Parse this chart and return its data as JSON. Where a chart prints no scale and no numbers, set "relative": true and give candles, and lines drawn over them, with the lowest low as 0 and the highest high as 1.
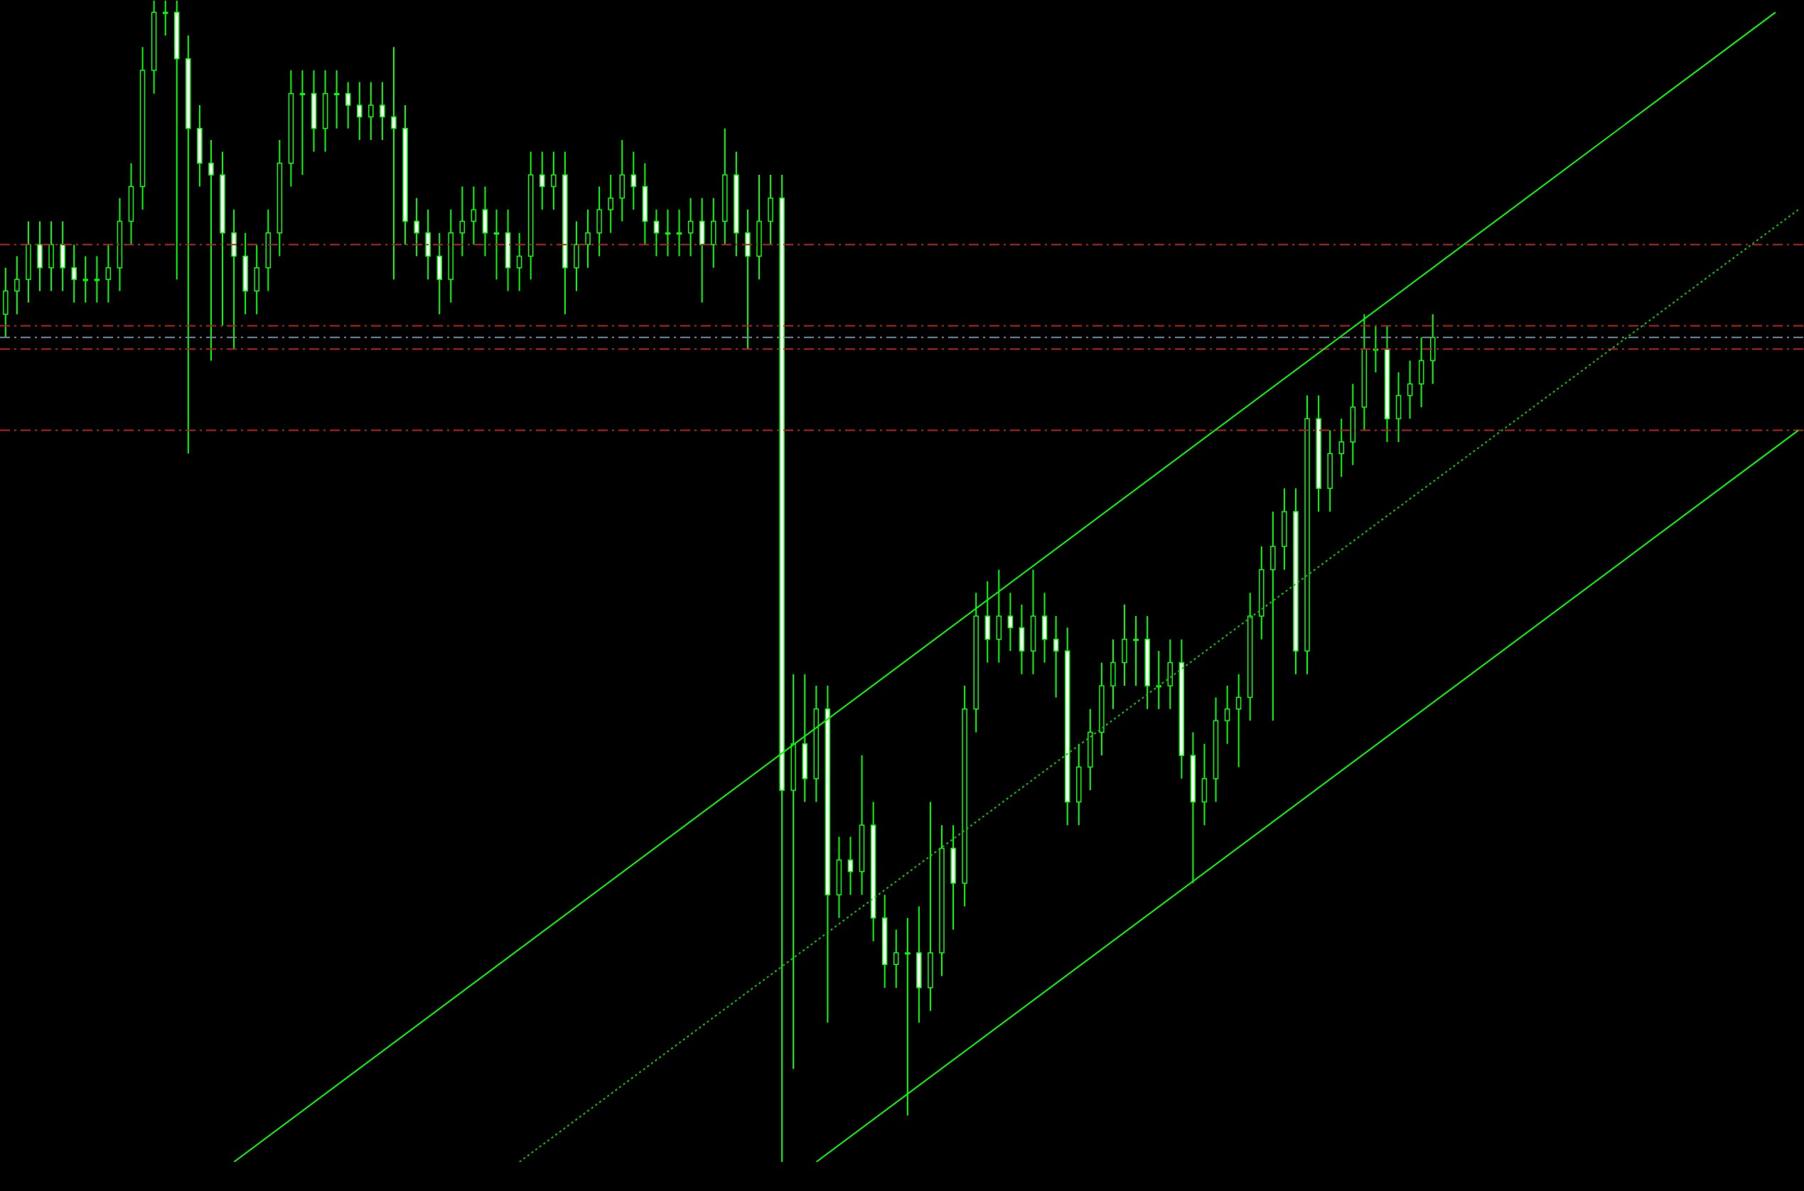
{
  "chart_data": {
    "type": "candlestick",
    "relative": true,
    "tick_labels": false,
    "color": "#00ff00",
    "categories": [
      null,
      null,
      null,
      null,
      null,
      null,
      null,
      null,
      null,
      null,
      null,
      null,
      null,
      null,
      null,
      null,
      null,
      null,
      null,
      null,
      null,
      null,
      null,
      null,
      null,
      null,
      null,
      null,
      null,
      null,
      null,
      null,
      null,
      null,
      null,
      null,
      null,
      null,
      null,
      null,
      null,
      null,
      null,
      null,
      null,
      null,
      null,
      null,
      null,
      null,
      null,
      null,
      null,
      null,
      null,
      null,
      null,
      null,
      null,
      null,
      null,
      null,
      null,
      null,
      null,
      null,
      null,
      null,
      null,
      null,
      null,
      null,
      null,
      null,
      null,
      null,
      null,
      null,
      null,
      null,
      null,
      null,
      null,
      null,
      null,
      null,
      null,
      null,
      null,
      null,
      null,
      null,
      null,
      null,
      null,
      null,
      null,
      null,
      null,
      null,
      null,
      null,
      null,
      null,
      null,
      null,
      null,
      null,
      null,
      null,
      null,
      null,
      null,
      null,
      null,
      null,
      null,
      null,
      null,
      null,
      null,
      null,
      null,
      null,
      null,
      null,
      null,
      null,
      null,
      null,
      null,
      null,
      null,
      null,
      null,
      null,
      null,
      null,
      null,
      null,
      null,
      null,
      null,
      null,
      null,
      null,
      null,
      null,
      null,
      null,
      null,
      null,
      null,
      null,
      null,
      null,
      null,
      null
    ],
    "ohlc": [
      [
        0.73,
        0.77,
        0.71,
        0.75
      ],
      [
        0.75,
        0.78,
        0.73,
        0.76
      ],
      [
        0.76,
        0.81,
        0.74,
        0.79
      ],
      [
        0.79,
        0.81,
        0.75,
        0.77
      ],
      [
        0.77,
        0.81,
        0.75,
        0.79
      ],
      [
        0.79,
        0.81,
        0.75,
        0.77
      ],
      [
        0.77,
        0.79,
        0.74,
        0.76
      ],
      [
        0.76,
        0.78,
        0.74,
        0.76
      ],
      [
        0.76,
        0.78,
        0.74,
        0.76
      ],
      [
        0.76,
        0.79,
        0.74,
        0.77
      ],
      [
        0.77,
        0.83,
        0.75,
        0.81
      ],
      [
        0.81,
        0.86,
        0.79,
        0.84
      ],
      [
        0.84,
        0.96,
        0.82,
        0.94
      ],
      [
        0.94,
        1.0,
        0.92,
        0.99
      ],
      [
        0.99,
        1.0,
        0.97,
        0.99
      ],
      [
        0.99,
        1.0,
        0.76,
        0.95
      ],
      [
        0.95,
        0.97,
        0.61,
        0.89
      ],
      [
        0.89,
        0.91,
        0.84,
        0.86
      ],
      [
        0.86,
        0.88,
        0.69,
        0.85
      ],
      [
        0.85,
        0.87,
        0.72,
        0.8
      ],
      [
        0.8,
        0.82,
        0.7,
        0.78
      ],
      [
        0.78,
        0.8,
        0.73,
        0.75
      ],
      [
        0.75,
        0.79,
        0.73,
        0.77
      ],
      [
        0.77,
        0.82,
        0.75,
        0.8
      ],
      [
        0.8,
        0.88,
        0.78,
        0.86
      ],
      [
        0.86,
        0.94,
        0.84,
        0.92
      ],
      [
        0.92,
        0.94,
        0.85,
        0.92
      ],
      [
        0.92,
        0.94,
        0.87,
        0.89
      ],
      [
        0.89,
        0.94,
        0.87,
        0.92
      ],
      [
        0.92,
        0.94,
        0.89,
        0.92
      ],
      [
        0.92,
        0.93,
        0.89,
        0.91
      ],
      [
        0.91,
        0.93,
        0.88,
        0.9
      ],
      [
        0.9,
        0.93,
        0.88,
        0.91
      ],
      [
        0.91,
        0.93,
        0.88,
        0.9
      ],
      [
        0.9,
        0.96,
        0.76,
        0.89
      ],
      [
        0.89,
        0.91,
        0.79,
        0.81
      ],
      [
        0.81,
        0.83,
        0.78,
        0.8
      ],
      [
        0.8,
        0.82,
        0.76,
        0.78
      ],
      [
        0.78,
        0.8,
        0.73,
        0.76
      ],
      [
        0.76,
        0.82,
        0.74,
        0.8
      ],
      [
        0.8,
        0.84,
        0.78,
        0.81
      ],
      [
        0.81,
        0.84,
        0.79,
        0.82
      ],
      [
        0.82,
        0.84,
        0.78,
        0.8
      ],
      [
        0.8,
        0.82,
        0.76,
        0.8
      ],
      [
        0.8,
        0.82,
        0.75,
        0.77
      ],
      [
        0.77,
        0.8,
        0.75,
        0.78
      ],
      [
        0.78,
        0.87,
        0.76,
        0.85
      ],
      [
        0.85,
        0.87,
        0.82,
        0.84
      ],
      [
        0.84,
        0.87,
        0.82,
        0.85
      ],
      [
        0.85,
        0.87,
        0.73,
        0.77
      ],
      [
        0.77,
        0.81,
        0.75,
        0.79
      ],
      [
        0.79,
        0.82,
        0.77,
        0.8
      ],
      [
        0.8,
        0.84,
        0.78,
        0.82
      ],
      [
        0.82,
        0.85,
        0.8,
        0.83
      ],
      [
        0.83,
        0.88,
        0.81,
        0.85
      ],
      [
        0.85,
        0.87,
        0.82,
        0.84
      ],
      [
        0.84,
        0.86,
        0.79,
        0.81
      ],
      [
        0.81,
        0.82,
        0.78,
        0.8
      ],
      [
        0.8,
        0.82,
        0.78,
        0.8
      ],
      [
        0.8,
        0.82,
        0.78,
        0.8
      ],
      [
        0.8,
        0.83,
        0.78,
        0.81
      ],
      [
        0.81,
        0.83,
        0.74,
        0.79
      ],
      [
        0.79,
        0.83,
        0.77,
        0.81
      ],
      [
        0.81,
        0.89,
        0.79,
        0.85
      ],
      [
        0.85,
        0.87,
        0.78,
        0.8
      ],
      [
        0.8,
        0.82,
        0.7,
        0.78
      ],
      [
        0.78,
        0.85,
        0.76,
        0.81
      ],
      [
        0.81,
        0.85,
        0.79,
        0.83
      ],
      [
        0.83,
        0.85,
        0.0,
        0.32
      ],
      [
        0.32,
        0.42,
        0.08,
        0.36
      ],
      [
        0.36,
        0.42,
        0.31,
        0.33
      ],
      [
        0.33,
        0.41,
        0.31,
        0.39
      ],
      [
        0.39,
        0.41,
        0.12,
        0.23
      ],
      [
        0.23,
        0.28,
        0.21,
        0.26
      ],
      [
        0.26,
        0.28,
        0.23,
        0.25
      ],
      [
        0.25,
        0.35,
        0.23,
        0.29
      ],
      [
        0.29,
        0.31,
        0.19,
        0.21
      ],
      [
        0.21,
        0.23,
        0.15,
        0.17
      ],
      [
        0.17,
        0.2,
        0.15,
        0.18
      ],
      [
        0.18,
        0.21,
        0.04,
        0.18
      ],
      [
        0.18,
        0.22,
        0.12,
        0.15
      ],
      [
        0.15,
        0.31,
        0.13,
        0.18
      ],
      [
        0.18,
        0.29,
        0.16,
        0.27
      ],
      [
        0.27,
        0.29,
        0.2,
        0.24
      ],
      [
        0.24,
        0.41,
        0.22,
        0.39
      ],
      [
        0.39,
        0.49,
        0.37,
        0.47
      ],
      [
        0.47,
        0.5,
        0.43,
        0.45
      ],
      [
        0.45,
        0.51,
        0.43,
        0.47
      ],
      [
        0.47,
        0.49,
        0.44,
        0.46
      ],
      [
        0.46,
        0.48,
        0.42,
        0.44
      ],
      [
        0.44,
        0.51,
        0.42,
        0.47
      ],
      [
        0.47,
        0.49,
        0.43,
        0.45
      ],
      [
        0.45,
        0.47,
        0.4,
        0.44
      ],
      [
        0.44,
        0.46,
        0.29,
        0.31
      ],
      [
        0.31,
        0.36,
        0.29,
        0.34
      ],
      [
        0.34,
        0.39,
        0.32,
        0.37
      ],
      [
        0.37,
        0.43,
        0.35,
        0.41
      ],
      [
        0.41,
        0.45,
        0.39,
        0.43
      ],
      [
        0.43,
        0.48,
        0.41,
        0.45
      ],
      [
        0.45,
        0.47,
        0.41,
        0.45
      ],
      [
        0.45,
        0.47,
        0.39,
        0.41
      ],
      [
        0.41,
        0.44,
        0.39,
        0.41
      ],
      [
        0.41,
        0.45,
        0.39,
        0.43
      ],
      [
        0.43,
        0.45,
        0.33,
        0.35
      ],
      [
        0.35,
        0.37,
        0.24,
        0.31
      ],
      [
        0.31,
        0.36,
        0.29,
        0.33
      ],
      [
        0.33,
        0.4,
        0.31,
        0.38
      ],
      [
        0.38,
        0.41,
        0.36,
        0.39
      ],
      [
        0.39,
        0.42,
        0.34,
        0.4
      ],
      [
        0.4,
        0.49,
        0.38,
        0.47
      ],
      [
        0.47,
        0.53,
        0.45,
        0.51
      ],
      [
        0.51,
        0.56,
        0.38,
        0.53
      ],
      [
        0.53,
        0.58,
        0.51,
        0.56
      ],
      [
        0.56,
        0.58,
        0.42,
        0.44
      ],
      [
        0.44,
        0.66,
        0.42,
        0.64
      ],
      [
        0.64,
        0.66,
        0.56,
        0.58
      ],
      [
        0.58,
        0.63,
        0.56,
        0.61
      ],
      [
        0.61,
        0.64,
        0.59,
        0.62
      ],
      [
        0.62,
        0.67,
        0.6,
        0.65
      ],
      [
        0.65,
        0.73,
        0.63,
        0.7
      ],
      [
        0.7,
        0.72,
        0.68,
        0.7
      ],
      [
        0.7,
        0.72,
        0.62,
        0.64
      ],
      [
        0.64,
        0.68,
        0.62,
        0.66
      ],
      [
        0.66,
        0.69,
        0.64,
        0.67
      ],
      [
        0.67,
        0.71,
        0.65,
        0.69
      ],
      [
        0.69,
        0.73,
        0.67,
        0.71
      ],
      null,
      null,
      null,
      null,
      null,
      null,
      null,
      null,
      null,
      null,
      null,
      null,
      null,
      null,
      null,
      null,
      null,
      null,
      null,
      null,
      null,
      null,
      null,
      null,
      null,
      null,
      null,
      null,
      null,
      null,
      null,
      null
    ],
    "series": [
      {
        "type": "line",
        "color": "#00ff00",
        "line_style": "solid",
        "values": [
          null,
          null,
          null,
          null,
          null,
          null,
          null,
          null,
          null,
          null,
          null,
          null,
          null,
          null,
          null,
          null,
          null,
          null,
          null,
          null,
          0.0,
          null,
          null,
          null,
          null,
          null,
          null,
          null,
          null,
          null,
          null,
          null,
          null,
          null,
          null,
          null,
          null,
          null,
          null,
          null,
          null,
          null,
          null,
          null,
          null,
          null,
          null,
          null,
          null,
          null,
          null,
          null,
          null,
          null,
          null,
          null,
          null,
          null,
          null,
          null,
          null,
          null,
          null,
          null,
          null,
          null,
          null,
          null,
          null,
          null,
          null,
          null,
          null,
          null,
          null,
          null,
          null,
          null,
          null,
          null,
          null,
          null,
          null,
          null,
          null,
          null,
          null,
          null,
          null,
          null,
          null,
          null,
          null,
          null,
          null,
          null,
          null,
          null,
          null,
          null,
          null,
          null,
          null,
          null,
          null,
          null,
          null,
          null,
          null,
          null,
          null,
          null,
          null,
          null,
          null,
          null,
          null,
          null,
          null,
          null,
          null,
          null,
          null,
          null,
          null,
          null,
          null,
          null,
          null,
          null,
          null,
          null,
          null,
          null,
          null,
          null,
          null,
          null,
          null,
          null,
          null,
          null,
          null,
          null,
          null,
          null,
          null,
          null,
          null,
          null,
          null,
          null,
          null,
          null,
          null,
          0.99,
          null,
          null
        ]
      },
      {
        "type": "line",
        "color": "#00ff00",
        "line_style": "solid",
        "values": [
          null,
          null,
          null,
          null,
          null,
          null,
          null,
          null,
          null,
          null,
          null,
          null,
          null,
          null,
          null,
          null,
          null,
          null,
          null,
          null,
          null,
          null,
          null,
          null,
          null,
          null,
          null,
          null,
          null,
          null,
          null,
          null,
          null,
          null,
          null,
          null,
          null,
          null,
          null,
          null,
          null,
          null,
          null,
          null,
          null,
          null,
          null,
          null,
          null,
          null,
          null,
          null,
          null,
          null,
          null,
          null,
          null,
          null,
          null,
          null,
          null,
          null,
          null,
          null,
          null,
          null,
          null,
          null,
          null,
          null,
          null,
          0.0,
          null,
          null,
          null,
          null,
          null,
          null,
          null,
          null,
          null,
          null,
          null,
          null,
          null,
          null,
          null,
          null,
          null,
          null,
          null,
          null,
          null,
          null,
          null,
          null,
          null,
          null,
          null,
          null,
          null,
          null,
          null,
          null,
          null,
          null,
          null,
          null,
          null,
          null,
          null,
          null,
          null,
          null,
          null,
          null,
          null,
          null,
          null,
          null,
          null,
          null,
          null,
          null,
          null,
          null,
          null,
          null,
          null,
          null,
          null,
          null,
          null,
          null,
          null,
          null,
          null,
          null,
          null,
          null,
          null,
          null,
          null,
          null,
          null,
          null,
          null,
          null,
          null,
          null,
          null,
          null,
          null,
          null,
          null,
          null,
          null,
          0.63
        ]
      },
      {
        "type": "line",
        "color": "#00cc00",
        "line_style": "dotted",
        "values": [
          null,
          null,
          null,
          null,
          null,
          null,
          null,
          null,
          null,
          null,
          null,
          null,
          null,
          null,
          null,
          null,
          null,
          null,
          null,
          null,
          null,
          null,
          null,
          null,
          null,
          null,
          null,
          null,
          null,
          null,
          null,
          null,
          null,
          null,
          null,
          null,
          null,
          null,
          null,
          null,
          null,
          null,
          null,
          null,
          null,
          0.0,
          null,
          null,
          null,
          null,
          null,
          null,
          null,
          null,
          null,
          null,
          null,
          null,
          null,
          null,
          null,
          null,
          null,
          null,
          null,
          null,
          null,
          null,
          null,
          null,
          null,
          null,
          null,
          null,
          null,
          null,
          null,
          null,
          null,
          null,
          null,
          null,
          null,
          null,
          null,
          null,
          null,
          null,
          null,
          null,
          null,
          null,
          null,
          null,
          null,
          null,
          null,
          null,
          null,
          null,
          null,
          null,
          null,
          null,
          null,
          null,
          null,
          null,
          null,
          null,
          null,
          null,
          null,
          null,
          null,
          null,
          null,
          null,
          null,
          null,
          null,
          null,
          null,
          null,
          null,
          null,
          null,
          null,
          null,
          null,
          null,
          null,
          null,
          null,
          null,
          null,
          null,
          null,
          null,
          null,
          null,
          null,
          null,
          null,
          null,
          null,
          null,
          null,
          null,
          null,
          null,
          null,
          null,
          null,
          null,
          null,
          null,
          0.82
        ]
      }
    ],
    "ref_lines": [
      {
        "axis": "y",
        "value": 0.79,
        "color": "#b22222",
        "line_style": "dashed"
      },
      {
        "axis": "y",
        "value": 0.72,
        "color": "#b22222",
        "line_style": "dashed"
      },
      {
        "axis": "y",
        "value": 0.71,
        "color": "#778899",
        "line_style": "dashed"
      },
      {
        "axis": "y",
        "value": 0.7,
        "color": "#b22222",
        "line_style": "dashed"
      },
      {
        "axis": "y",
        "value": 0.63,
        "color": "#b22222",
        "line_style": "dashed"
      }
    ]
  }
}
